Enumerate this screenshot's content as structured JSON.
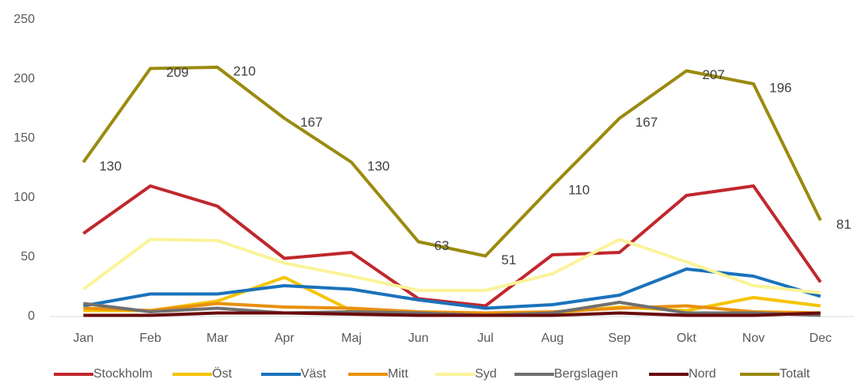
{
  "chart_data": {
    "type": "line",
    "categories": [
      "Jan",
      "Feb",
      "Mar",
      "Apr",
      "Maj",
      "Jun",
      "Jul",
      "Aug",
      "Sep",
      "Okt",
      "Nov",
      "Dec"
    ],
    "ylim": [
      0,
      250
    ],
    "yticks": [
      0,
      50,
      100,
      150,
      200,
      250
    ],
    "grid": false,
    "legend": "bottom",
    "series": [
      {
        "name": "Stockholm",
        "color": "#c0272d",
        "values": [
          70,
          110,
          93,
          49,
          54,
          15,
          9,
          52,
          54,
          102,
          110,
          29
        ]
      },
      {
        "name": "Öst",
        "color": "#f5c400",
        "values": [
          5,
          5,
          13,
          33,
          5,
          3,
          3,
          3,
          8,
          5,
          16,
          9
        ]
      },
      {
        "name": "Väst",
        "color": "#1a72bb",
        "values": [
          9,
          19,
          19,
          26,
          23,
          14,
          7,
          10,
          18,
          40,
          34,
          17
        ]
      },
      {
        "name": "Mitt",
        "color": "#e8900c",
        "values": [
          7,
          5,
          11,
          8,
          7,
          4,
          3,
          4,
          7,
          9,
          4,
          3
        ]
      },
      {
        "name": "Syd",
        "color": "#fbf39a",
        "values": [
          23,
          65,
          64,
          45,
          34,
          22,
          22,
          36,
          65,
          46,
          26,
          20
        ]
      },
      {
        "name": "Bergslagen",
        "color": "#707070",
        "values": [
          11,
          4,
          7,
          3,
          4,
          3,
          1,
          3,
          12,
          3,
          3,
          1
        ]
      },
      {
        "name": "Nord",
        "color": "#6a0a0a",
        "values": [
          1,
          1,
          3,
          3,
          2,
          1,
          1,
          1,
          3,
          1,
          1,
          3
        ]
      },
      {
        "name": "Totalt",
        "color": "#9b8a0e",
        "data_labels": true,
        "values": [
          130,
          209,
          210,
          167,
          130,
          63,
          51,
          110,
          167,
          207,
          196,
          81
        ]
      }
    ]
  }
}
